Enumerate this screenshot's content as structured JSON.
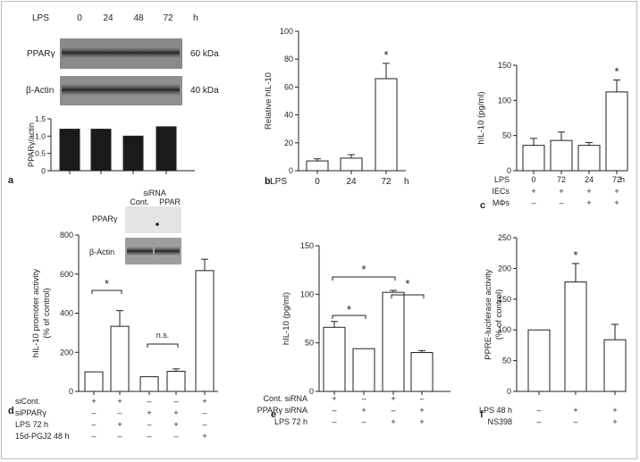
{
  "panel_labels": {
    "a": "a",
    "b": "b",
    "c": "c",
    "d": "d",
    "e": "e",
    "f": "f"
  },
  "western_a": {
    "header": "LPS",
    "timepoints": [
      "0",
      "24",
      "48",
      "72"
    ],
    "unit": "h",
    "bands": [
      {
        "label": "PPARγ",
        "size": "60 kDa"
      },
      {
        "label": "β-Actin",
        "size": "40 kDa"
      }
    ]
  },
  "western_d": {
    "header": "siRNA",
    "lanes": [
      "Cont.",
      "PPAR"
    ],
    "bands": [
      "PPARγ",
      "β-Actin"
    ]
  },
  "chart_data": [
    {
      "panel": "a",
      "type": "bar",
      "ylabel": "PPARγ/actin",
      "ylim": [
        0,
        1.5
      ],
      "yticks": [
        "0",
        "0.5",
        "1.0",
        "1.5"
      ],
      "values": [
        1.2,
        1.2,
        1.0,
        1.27
      ],
      "bar_color": "#1a1a1a"
    },
    {
      "panel": "b",
      "type": "bar",
      "ylabel": "Relative hIL-10",
      "ylim": [
        0,
        100
      ],
      "yticks": [
        "0",
        "20",
        "40",
        "60",
        "80",
        "100"
      ],
      "xrow_label": "LPS",
      "x_unit": "h",
      "categories": [
        "0",
        "24",
        "72"
      ],
      "values": [
        7,
        9,
        66
      ],
      "errors": [
        1.5,
        2.5,
        11
      ],
      "significance": [
        "",
        "",
        "*"
      ]
    },
    {
      "panel": "c",
      "type": "bar",
      "ylabel": "hIL-10 (pg/ml)",
      "ylim": [
        0,
        150
      ],
      "yticks": [
        "0",
        "50",
        "100",
        "150"
      ],
      "x_unit": "h",
      "rows": [
        {
          "label": "LPS",
          "values": [
            "0",
            "72",
            "24",
            "72"
          ]
        },
        {
          "label": "IECs",
          "values": [
            "+",
            "+",
            "+",
            "+"
          ]
        },
        {
          "label": "MΦs",
          "values": [
            "–",
            "–",
            "+",
            "+"
          ]
        }
      ],
      "values": [
        36,
        43,
        36,
        112
      ],
      "errors": [
        10,
        12,
        4,
        17
      ],
      "significance": [
        "",
        "",
        "",
        "*"
      ]
    },
    {
      "panel": "d",
      "type": "bar",
      "ylabel": [
        "hIL-10 promoter activity",
        "(% of control)"
      ],
      "ylim": [
        0,
        800
      ],
      "yticks": [
        "0",
        "200",
        "400",
        "600",
        "800"
      ],
      "rows": [
        {
          "label": "siCont.",
          "values": [
            "+",
            "+",
            "–",
            "–",
            "+"
          ]
        },
        {
          "label": "siPPARγ",
          "values": [
            "–",
            "–",
            "+",
            "+",
            "–"
          ]
        },
        {
          "label": "LPS 72 h",
          "values": [
            "–",
            "+",
            "–",
            "+",
            "–"
          ]
        },
        {
          "label": "15d-PGJ2 48 h",
          "values": [
            "–",
            "–",
            "–",
            "–",
            "+"
          ]
        }
      ],
      "values": [
        100,
        333,
        75,
        103,
        618
      ],
      "errors": [
        0,
        80,
        0,
        12,
        58
      ],
      "brackets": [
        {
          "from": 0,
          "to": 1,
          "text": "*"
        },
        {
          "from": 2,
          "to": 3,
          "text": "n.s."
        }
      ]
    },
    {
      "panel": "e",
      "type": "bar",
      "ylabel": "hIL-10 (pg/ml)",
      "ylim": [
        0,
        150
      ],
      "yticks": [
        "0",
        "50",
        "100",
        "150"
      ],
      "rows": [
        {
          "label": "Cont. siRNA",
          "values": [
            "+",
            "–",
            "+",
            "–"
          ]
        },
        {
          "label": "PPARγ siRNA",
          "values": [
            "–",
            "+",
            "–",
            "+"
          ]
        },
        {
          "label": "LPS 72 h",
          "values": [
            "–",
            "–",
            "+",
            "+"
          ]
        }
      ],
      "values": [
        66,
        44,
        102,
        40
      ],
      "errors": [
        6,
        0,
        2,
        2
      ],
      "brackets": [
        {
          "from": 0,
          "to": 1,
          "text": "*"
        },
        {
          "from": 0,
          "to": 2,
          "text": "*"
        },
        {
          "from": 2,
          "to": 3,
          "text": "*"
        }
      ]
    },
    {
      "panel": "f",
      "type": "bar",
      "ylabel": [
        "PPRE-luciferase activity",
        "(% of control)"
      ],
      "ylim": [
        0,
        250
      ],
      "yticks": [
        "0",
        "50",
        "100",
        "150",
        "200",
        "250"
      ],
      "rows": [
        {
          "label": "LPS 48 h",
          "values": [
            "–",
            "+",
            "+"
          ]
        },
        {
          "label": "NS398",
          "values": [
            "–",
            "–",
            "+"
          ]
        }
      ],
      "values": [
        100,
        178,
        84
      ],
      "errors": [
        0,
        30,
        25
      ],
      "significance": [
        "",
        "*",
        ""
      ]
    }
  ]
}
